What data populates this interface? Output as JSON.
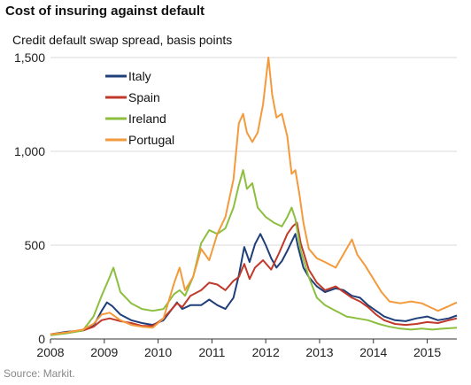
{
  "title": "Cost of insuring against default",
  "source": "Source: Markit.",
  "chart_data": {
    "type": "line",
    "title": "Cost of insuring against default",
    "subtitle": "Credit default swap spread, basis points",
    "xlabel": "",
    "ylabel": "",
    "xlim": [
      2008,
      2015.55
    ],
    "ylim": [
      0,
      1500
    ],
    "x_ticks": [
      2008,
      2009,
      2010,
      2011,
      2012,
      2013,
      2014,
      2015
    ],
    "x_tick_labels": [
      "2008",
      "2009",
      "2010",
      "2011",
      "2012",
      "2013",
      "2014",
      "2015"
    ],
    "y_ticks": [
      0,
      500,
      1000,
      1500
    ],
    "y_tick_labels": [
      "0",
      "500",
      "1,000",
      "1,500"
    ],
    "grid": "horizontal",
    "legend_position": "top-left",
    "series": [
      {
        "name": "Italy",
        "color": "#1f3f7a",
        "points": [
          [
            2008.0,
            25
          ],
          [
            2008.3,
            38
          ],
          [
            2008.6,
            45
          ],
          [
            2008.8,
            70
          ],
          [
            2008.95,
            150
          ],
          [
            2009.05,
            195
          ],
          [
            2009.15,
            175
          ],
          [
            2009.3,
            130
          ],
          [
            2009.5,
            100
          ],
          [
            2009.7,
            85
          ],
          [
            2009.9,
            75
          ],
          [
            2010.1,
            100
          ],
          [
            2010.35,
            195
          ],
          [
            2010.45,
            160
          ],
          [
            2010.6,
            180
          ],
          [
            2010.8,
            180
          ],
          [
            2010.95,
            210
          ],
          [
            2011.1,
            180
          ],
          [
            2011.25,
            160
          ],
          [
            2011.4,
            220
          ],
          [
            2011.5,
            340
          ],
          [
            2011.6,
            490
          ],
          [
            2011.7,
            410
          ],
          [
            2011.8,
            505
          ],
          [
            2011.9,
            560
          ],
          [
            2012.0,
            500
          ],
          [
            2012.1,
            430
          ],
          [
            2012.2,
            380
          ],
          [
            2012.3,
            415
          ],
          [
            2012.4,
            470
          ],
          [
            2012.5,
            530
          ],
          [
            2012.55,
            560
          ],
          [
            2012.6,
            490
          ],
          [
            2012.7,
            380
          ],
          [
            2012.8,
            330
          ],
          [
            2012.95,
            280
          ],
          [
            2013.1,
            250
          ],
          [
            2013.3,
            270
          ],
          [
            2013.45,
            260
          ],
          [
            2013.6,
            230
          ],
          [
            2013.75,
            220
          ],
          [
            2013.9,
            180
          ],
          [
            2014.05,
            150
          ],
          [
            2014.2,
            120
          ],
          [
            2014.4,
            100
          ],
          [
            2014.6,
            95
          ],
          [
            2014.8,
            110
          ],
          [
            2015.0,
            120
          ],
          [
            2015.2,
            100
          ],
          [
            2015.4,
            110
          ],
          [
            2015.55,
            125
          ]
        ]
      },
      {
        "name": "Spain",
        "color": "#c0392b",
        "points": [
          [
            2008.0,
            25
          ],
          [
            2008.3,
            35
          ],
          [
            2008.6,
            45
          ],
          [
            2008.8,
            65
          ],
          [
            2008.95,
            100
          ],
          [
            2009.1,
            110
          ],
          [
            2009.3,
            95
          ],
          [
            2009.5,
            85
          ],
          [
            2009.7,
            70
          ],
          [
            2009.9,
            70
          ],
          [
            2010.1,
            110
          ],
          [
            2010.35,
            190
          ],
          [
            2010.45,
            170
          ],
          [
            2010.6,
            230
          ],
          [
            2010.8,
            260
          ],
          [
            2010.95,
            300
          ],
          [
            2011.1,
            290
          ],
          [
            2011.25,
            260
          ],
          [
            2011.4,
            310
          ],
          [
            2011.5,
            330
          ],
          [
            2011.6,
            400
          ],
          [
            2011.7,
            320
          ],
          [
            2011.8,
            380
          ],
          [
            2011.95,
            420
          ],
          [
            2012.1,
            370
          ],
          [
            2012.25,
            460
          ],
          [
            2012.4,
            560
          ],
          [
            2012.5,
            600
          ],
          [
            2012.58,
            620
          ],
          [
            2012.65,
            510
          ],
          [
            2012.8,
            370
          ],
          [
            2012.95,
            300
          ],
          [
            2013.1,
            260
          ],
          [
            2013.3,
            280
          ],
          [
            2013.45,
            250
          ],
          [
            2013.6,
            220
          ],
          [
            2013.75,
            200
          ],
          [
            2013.9,
            170
          ],
          [
            2014.05,
            130
          ],
          [
            2014.2,
            100
          ],
          [
            2014.4,
            80
          ],
          [
            2014.6,
            75
          ],
          [
            2014.8,
            80
          ],
          [
            2015.0,
            90
          ],
          [
            2015.2,
            85
          ],
          [
            2015.4,
            100
          ],
          [
            2015.55,
            110
          ]
        ]
      },
      {
        "name": "Ireland",
        "color": "#8dbf3f",
        "points": [
          [
            2008.0,
            20
          ],
          [
            2008.3,
            30
          ],
          [
            2008.6,
            45
          ],
          [
            2008.8,
            120
          ],
          [
            2008.95,
            230
          ],
          [
            2009.1,
            330
          ],
          [
            2009.17,
            380
          ],
          [
            2009.3,
            250
          ],
          [
            2009.5,
            190
          ],
          [
            2009.7,
            160
          ],
          [
            2009.9,
            150
          ],
          [
            2010.1,
            160
          ],
          [
            2010.3,
            240
          ],
          [
            2010.4,
            260
          ],
          [
            2010.5,
            230
          ],
          [
            2010.65,
            330
          ],
          [
            2010.8,
            510
          ],
          [
            2010.95,
            580
          ],
          [
            2011.1,
            560
          ],
          [
            2011.25,
            590
          ],
          [
            2011.4,
            700
          ],
          [
            2011.5,
            820
          ],
          [
            2011.58,
            900
          ],
          [
            2011.65,
            800
          ],
          [
            2011.75,
            830
          ],
          [
            2011.85,
            700
          ],
          [
            2012.0,
            650
          ],
          [
            2012.15,
            620
          ],
          [
            2012.3,
            600
          ],
          [
            2012.4,
            650
          ],
          [
            2012.48,
            700
          ],
          [
            2012.55,
            640
          ],
          [
            2012.65,
            470
          ],
          [
            2012.8,
            330
          ],
          [
            2012.95,
            220
          ],
          [
            2013.1,
            180
          ],
          [
            2013.3,
            150
          ],
          [
            2013.5,
            120
          ],
          [
            2013.7,
            110
          ],
          [
            2013.9,
            100
          ],
          [
            2014.1,
            80
          ],
          [
            2014.3,
            65
          ],
          [
            2014.5,
            55
          ],
          [
            2014.7,
            50
          ],
          [
            2014.9,
            55
          ],
          [
            2015.1,
            50
          ],
          [
            2015.3,
            55
          ],
          [
            2015.55,
            60
          ]
        ]
      },
      {
        "name": "Portugal",
        "color": "#f39a3c",
        "points": [
          [
            2008.0,
            25
          ],
          [
            2008.3,
            35
          ],
          [
            2008.6,
            50
          ],
          [
            2008.8,
            80
          ],
          [
            2008.95,
            130
          ],
          [
            2009.1,
            140
          ],
          [
            2009.3,
            100
          ],
          [
            2009.5,
            75
          ],
          [
            2009.7,
            65
          ],
          [
            2009.9,
            60
          ],
          [
            2010.1,
            110
          ],
          [
            2010.3,
            300
          ],
          [
            2010.4,
            380
          ],
          [
            2010.5,
            260
          ],
          [
            2010.65,
            330
          ],
          [
            2010.8,
            480
          ],
          [
            2010.95,
            420
          ],
          [
            2011.1,
            560
          ],
          [
            2011.25,
            650
          ],
          [
            2011.4,
            850
          ],
          [
            2011.5,
            1150
          ],
          [
            2011.58,
            1200
          ],
          [
            2011.65,
            1100
          ],
          [
            2011.75,
            1050
          ],
          [
            2011.85,
            1100
          ],
          [
            2011.95,
            1250
          ],
          [
            2012.05,
            1500
          ],
          [
            2012.12,
            1300
          ],
          [
            2012.2,
            1180
          ],
          [
            2012.3,
            1200
          ],
          [
            2012.4,
            1080
          ],
          [
            2012.48,
            880
          ],
          [
            2012.55,
            900
          ],
          [
            2012.62,
            780
          ],
          [
            2012.7,
            620
          ],
          [
            2012.8,
            480
          ],
          [
            2012.95,
            430
          ],
          [
            2013.1,
            410
          ],
          [
            2013.3,
            380
          ],
          [
            2013.5,
            480
          ],
          [
            2013.6,
            530
          ],
          [
            2013.7,
            450
          ],
          [
            2013.85,
            390
          ],
          [
            2014.0,
            320
          ],
          [
            2014.15,
            250
          ],
          [
            2014.3,
            200
          ],
          [
            2014.5,
            190
          ],
          [
            2014.7,
            200
          ],
          [
            2014.9,
            190
          ],
          [
            2015.05,
            170
          ],
          [
            2015.2,
            150
          ],
          [
            2015.4,
            175
          ],
          [
            2015.55,
            195
          ]
        ]
      }
    ]
  }
}
